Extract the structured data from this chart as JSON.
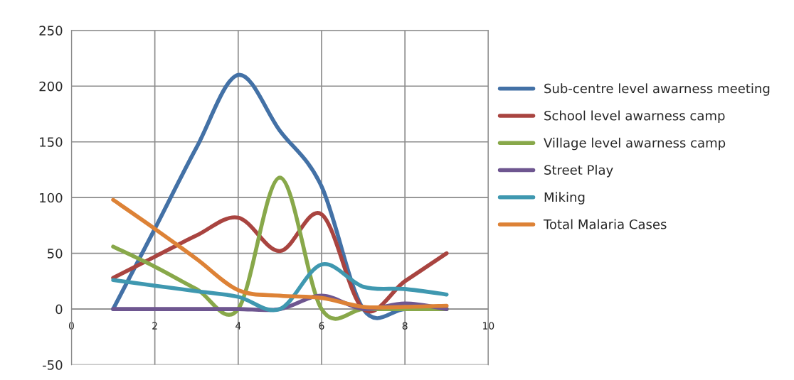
{
  "chart_data": {
    "type": "line",
    "x": [
      1,
      2,
      3,
      4,
      5,
      6,
      7,
      8,
      9
    ],
    "series": [
      {
        "name": "Sub-centre level awarness meeting",
        "color": "#4371a6",
        "values": [
          0,
          72,
          145,
          210,
          160,
          110,
          0,
          0,
          0
        ]
      },
      {
        "name": "School level awarness camp",
        "color": "#a94440",
        "values": [
          28,
          47,
          66,
          82,
          52,
          85,
          0,
          25,
          50
        ]
      },
      {
        "name": "Village level awarness camp",
        "color": "#88a84a",
        "values": [
          56,
          38,
          18,
          0,
          118,
          0,
          0,
          0,
          0
        ]
      },
      {
        "name": "Street Play",
        "color": "#6e5690",
        "values": [
          0,
          0,
          0,
          0,
          0,
          12,
          0,
          5,
          0
        ]
      },
      {
        "name": "Miking",
        "color": "#3f98b0",
        "values": [
          26,
          21,
          16,
          11,
          0,
          40,
          20,
          18,
          13
        ]
      },
      {
        "name": "Total Malaria Cases",
        "color": "#dd8236",
        "values": [
          98,
          72,
          45,
          17,
          12,
          10,
          2,
          2,
          3
        ]
      }
    ],
    "xlim": [
      0,
      10
    ],
    "xticks": [
      0,
      2,
      4,
      6,
      8,
      10
    ],
    "ylim": [
      -50,
      250
    ],
    "yticks": [
      -50,
      0,
      50,
      100,
      150,
      200,
      250
    ],
    "grid": true,
    "legend": "right",
    "marker": "none",
    "line_style": "solid"
  }
}
